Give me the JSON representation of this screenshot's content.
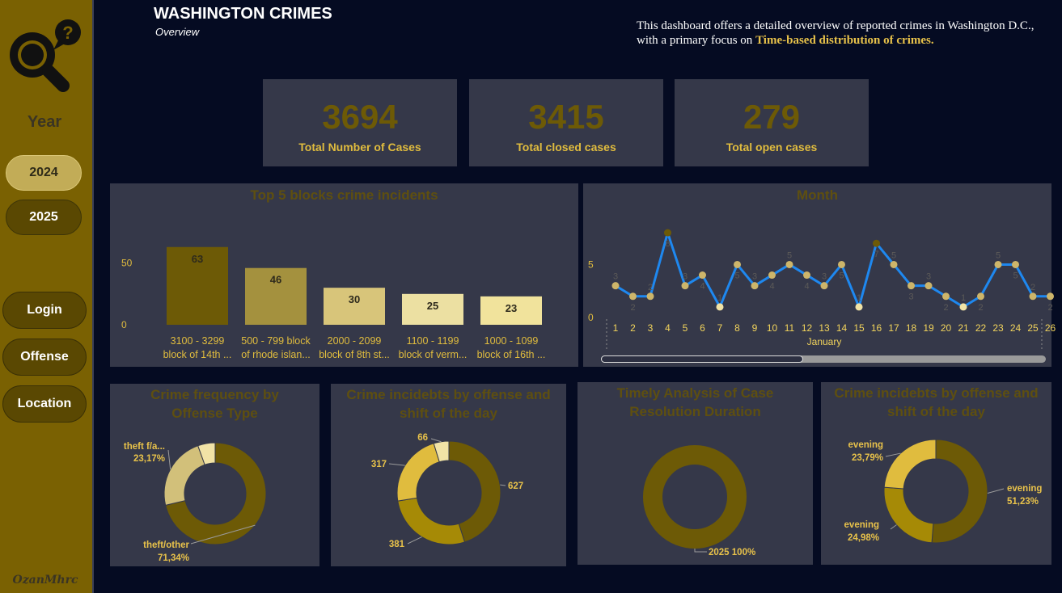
{
  "sidebar": {
    "year_label": "Year",
    "years": [
      "2024",
      "2025"
    ],
    "nav": [
      "Login",
      "Offense",
      "Location"
    ],
    "author": "OzanMhrc",
    "logo_icon": "magnifier-question-icon"
  },
  "header": {
    "title": "WASHINGTON CRIMES",
    "subtitle": "Overview",
    "description": "This dashboard offers a detailed overview of reported crimes in Washington D.C., with a primary focus on ",
    "description_highlight": "Time-based distribution of crimes."
  },
  "kpis": [
    {
      "value": "3694",
      "label": "Total Number of Cases"
    },
    {
      "value": "3415",
      "label": "Total closed cases"
    },
    {
      "value": "279",
      "label": "Total open cases"
    }
  ],
  "colors": {
    "accent": "#e0bc3e",
    "panel": "#353849",
    "background": "#050b22",
    "sidebar": "#7a6102",
    "line": "#1e88f0",
    "dark_gold": "#6d5a06"
  },
  "chart_data": [
    {
      "type": "bar",
      "title": "Top 5 blocks crime incidents",
      "categories": [
        [
          "3100 - 3299",
          "block of 14th ..."
        ],
        [
          "500 - 799 block",
          "of rhode islan..."
        ],
        [
          "2000 - 2099",
          "block of 8th st..."
        ],
        [
          "1100 - 1199",
          "block of verm..."
        ],
        [
          "1000 - 1099",
          "block of 16th ..."
        ]
      ],
      "values": [
        63,
        46,
        30,
        25,
        23
      ],
      "y_ticks": [
        0,
        50
      ],
      "ylim": [
        0,
        72
      ],
      "colors": [
        "#6d5a06",
        "#a4913e",
        "#d8c57a",
        "#ece0a2",
        "#f1e39c"
      ]
    },
    {
      "type": "line",
      "title": "Month",
      "x": [
        1,
        2,
        3,
        4,
        5,
        6,
        7,
        8,
        9,
        10,
        11,
        12,
        13,
        14,
        15,
        16,
        17,
        18,
        19,
        20,
        21,
        22,
        23,
        24,
        25,
        26
      ],
      "values": [
        3,
        2,
        2,
        8,
        3,
        4,
        1,
        5,
        3,
        4,
        5,
        4,
        3,
        5,
        1,
        7,
        5,
        3,
        3,
        2,
        1,
        2,
        5,
        5,
        2,
        2
      ],
      "x_group_label": "January",
      "y_ticks": [
        0,
        5
      ],
      "ylim": [
        0,
        9
      ]
    },
    {
      "type": "pie",
      "title": "Crime frequency by Offense Type",
      "labels": [
        "theft/other",
        "theft f/a...",
        ""
      ],
      "values": [
        71.34,
        23.17,
        5.49
      ],
      "data_labels": [
        "71,34%",
        "23,17%",
        ""
      ],
      "colors": [
        "#6d5a06",
        "#d2c07a",
        "#f1e3a6"
      ]
    },
    {
      "type": "pie",
      "title": "Crime incidebts by offense and shift of the day",
      "values": [
        627,
        381,
        317,
        66
      ],
      "data_labels": [
        "627",
        "381",
        "317",
        "66"
      ],
      "colors": [
        "#6d5a06",
        "#a68a06",
        "#e0bc3e",
        "#f1e3a6"
      ]
    },
    {
      "type": "pie",
      "title": "Timely Analysis of Case Resolution Duration",
      "values": [
        100
      ],
      "data_labels": [
        "2025 100%"
      ],
      "colors": [
        "#6d5a06"
      ]
    },
    {
      "type": "pie",
      "title": "Crime incidebts by offense and shift of the day",
      "labels": [
        "evening",
        "evening",
        "evening"
      ],
      "values": [
        51.23,
        24.98,
        23.79
      ],
      "data_labels": [
        "51,23%",
        "24,98%",
        "23,79%"
      ],
      "colors": [
        "#6d5a06",
        "#a68a06",
        "#e0bc3e"
      ]
    }
  ]
}
